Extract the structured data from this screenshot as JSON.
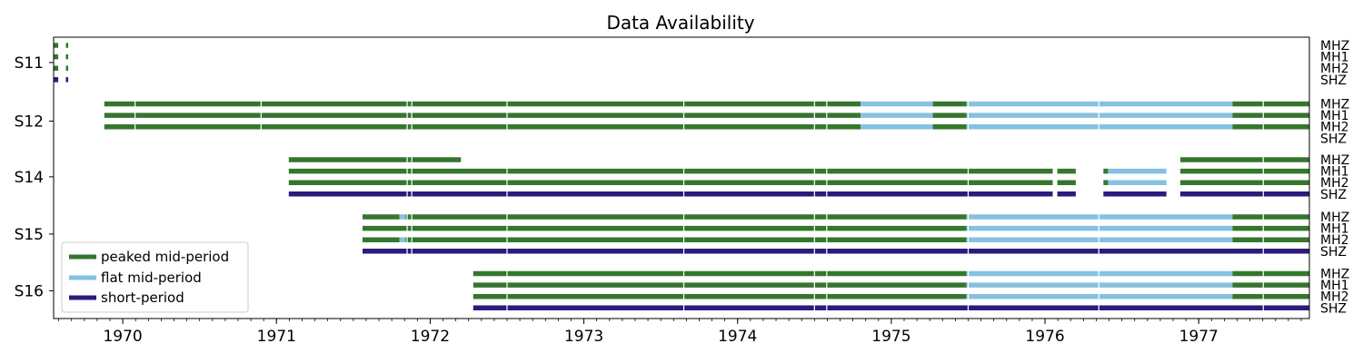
{
  "chart_data": {
    "type": "timeline",
    "title": "Data Availability",
    "xlim": [
      1969.55,
      1977.72
    ],
    "x_ticks": [
      "1970",
      "1971",
      "1972",
      "1973",
      "1974",
      "1975",
      "1976",
      "1977"
    ],
    "x_tick_values": [
      1970,
      1971,
      1972,
      1973,
      1974,
      1975,
      1976,
      1977
    ],
    "x_minor_ticks_per_year": 12,
    "stations": [
      "S11",
      "S12",
      "S14",
      "S15",
      "S16"
    ],
    "channels": [
      "MHZ",
      "MH1",
      "MH2",
      "SHZ"
    ],
    "colors": {
      "peaked": "#35762f",
      "flat": "#86c1e0",
      "short": "#2e1a7c"
    },
    "legend": {
      "placement": "lower-left",
      "entries": [
        {
          "key": "peaked",
          "label": "peaked mid-period"
        },
        {
          "key": "flat",
          "label": "flat mid-period"
        },
        {
          "key": "short",
          "label": "short-period"
        }
      ]
    },
    "tracks": [
      {
        "station": "S11",
        "channel": "MHZ",
        "segments": [
          [
            1969.55,
            1969.58,
            "peaked"
          ],
          [
            1969.63,
            1969.645,
            "peaked"
          ]
        ]
      },
      {
        "station": "S11",
        "channel": "MH1",
        "segments": [
          [
            1969.55,
            1969.58,
            "peaked"
          ],
          [
            1969.63,
            1969.645,
            "peaked"
          ]
        ]
      },
      {
        "station": "S11",
        "channel": "MH2",
        "segments": [
          [
            1969.55,
            1969.58,
            "peaked"
          ],
          [
            1969.63,
            1969.645,
            "peaked"
          ]
        ]
      },
      {
        "station": "S11",
        "channel": "SHZ",
        "segments": [
          [
            1969.55,
            1969.58,
            "short"
          ],
          [
            1969.63,
            1969.645,
            "short"
          ]
        ]
      },
      {
        "station": "S12",
        "channel": "MHZ",
        "segments": [
          [
            1969.88,
            1974.8,
            "peaked"
          ],
          [
            1974.8,
            1975.27,
            "flat"
          ],
          [
            1975.27,
            1975.49,
            "peaked"
          ],
          [
            1975.49,
            1977.22,
            "flat"
          ],
          [
            1977.22,
            1977.72,
            "peaked"
          ]
        ]
      },
      {
        "station": "S12",
        "channel": "MH1",
        "segments": [
          [
            1969.88,
            1974.8,
            "peaked"
          ],
          [
            1974.8,
            1975.27,
            "flat"
          ],
          [
            1975.27,
            1975.49,
            "peaked"
          ],
          [
            1975.49,
            1977.22,
            "flat"
          ],
          [
            1977.22,
            1977.72,
            "peaked"
          ]
        ]
      },
      {
        "station": "S12",
        "channel": "MH2",
        "segments": [
          [
            1969.88,
            1974.8,
            "peaked"
          ],
          [
            1974.8,
            1975.27,
            "flat"
          ],
          [
            1975.27,
            1975.49,
            "peaked"
          ],
          [
            1975.49,
            1977.22,
            "flat"
          ],
          [
            1977.22,
            1977.72,
            "peaked"
          ]
        ]
      },
      {
        "station": "S12",
        "channel": "SHZ",
        "segments": []
      },
      {
        "station": "S14",
        "channel": "MHZ",
        "segments": [
          [
            1971.08,
            1972.2,
            "peaked"
          ],
          [
            1976.88,
            1977.72,
            "peaked"
          ]
        ]
      },
      {
        "station": "S14",
        "channel": "MH1",
        "segments": [
          [
            1971.08,
            1976.05,
            "peaked"
          ],
          [
            1976.08,
            1976.2,
            "peaked"
          ],
          [
            1976.38,
            1976.41,
            "peaked"
          ],
          [
            1976.41,
            1976.79,
            "flat"
          ],
          [
            1976.88,
            1977.72,
            "peaked"
          ]
        ]
      },
      {
        "station": "S14",
        "channel": "MH2",
        "segments": [
          [
            1971.08,
            1976.05,
            "peaked"
          ],
          [
            1976.08,
            1976.2,
            "peaked"
          ],
          [
            1976.38,
            1976.41,
            "peaked"
          ],
          [
            1976.41,
            1976.79,
            "flat"
          ],
          [
            1976.88,
            1977.72,
            "peaked"
          ]
        ]
      },
      {
        "station": "S14",
        "channel": "SHZ",
        "segments": [
          [
            1971.08,
            1976.05,
            "short"
          ],
          [
            1976.08,
            1976.2,
            "short"
          ],
          [
            1976.38,
            1976.79,
            "short"
          ],
          [
            1976.88,
            1977.72,
            "short"
          ]
        ]
      },
      {
        "station": "S15",
        "channel": "MHZ",
        "segments": [
          [
            1971.56,
            1971.8,
            "peaked"
          ],
          [
            1971.8,
            1971.84,
            "flat"
          ],
          [
            1971.84,
            1975.49,
            "peaked"
          ],
          [
            1975.49,
            1977.22,
            "flat"
          ],
          [
            1977.22,
            1977.72,
            "peaked"
          ]
        ]
      },
      {
        "station": "S15",
        "channel": "MH1",
        "segments": [
          [
            1971.56,
            1975.49,
            "peaked"
          ],
          [
            1975.49,
            1977.22,
            "flat"
          ],
          [
            1977.22,
            1977.72,
            "peaked"
          ]
        ]
      },
      {
        "station": "S15",
        "channel": "MH2",
        "segments": [
          [
            1971.56,
            1971.8,
            "peaked"
          ],
          [
            1971.8,
            1971.84,
            "flat"
          ],
          [
            1971.84,
            1975.49,
            "peaked"
          ],
          [
            1975.49,
            1977.22,
            "flat"
          ],
          [
            1977.22,
            1977.72,
            "peaked"
          ]
        ]
      },
      {
        "station": "S15",
        "channel": "SHZ",
        "segments": [
          [
            1971.56,
            1977.72,
            "short"
          ]
        ]
      },
      {
        "station": "S16",
        "channel": "MHZ",
        "segments": [
          [
            1972.28,
            1975.49,
            "peaked"
          ],
          [
            1975.49,
            1977.22,
            "flat"
          ],
          [
            1977.22,
            1977.72,
            "peaked"
          ]
        ]
      },
      {
        "station": "S16",
        "channel": "MH1",
        "segments": [
          [
            1972.28,
            1975.49,
            "peaked"
          ],
          [
            1975.49,
            1977.22,
            "flat"
          ],
          [
            1977.22,
            1977.72,
            "peaked"
          ]
        ]
      },
      {
        "station": "S16",
        "channel": "MH2",
        "segments": [
          [
            1972.28,
            1975.49,
            "peaked"
          ],
          [
            1975.49,
            1977.22,
            "flat"
          ],
          [
            1977.22,
            1977.72,
            "peaked"
          ]
        ]
      },
      {
        "station": "S16",
        "channel": "SHZ",
        "segments": [
          [
            1972.28,
            1977.72,
            "short"
          ]
        ]
      }
    ]
  }
}
